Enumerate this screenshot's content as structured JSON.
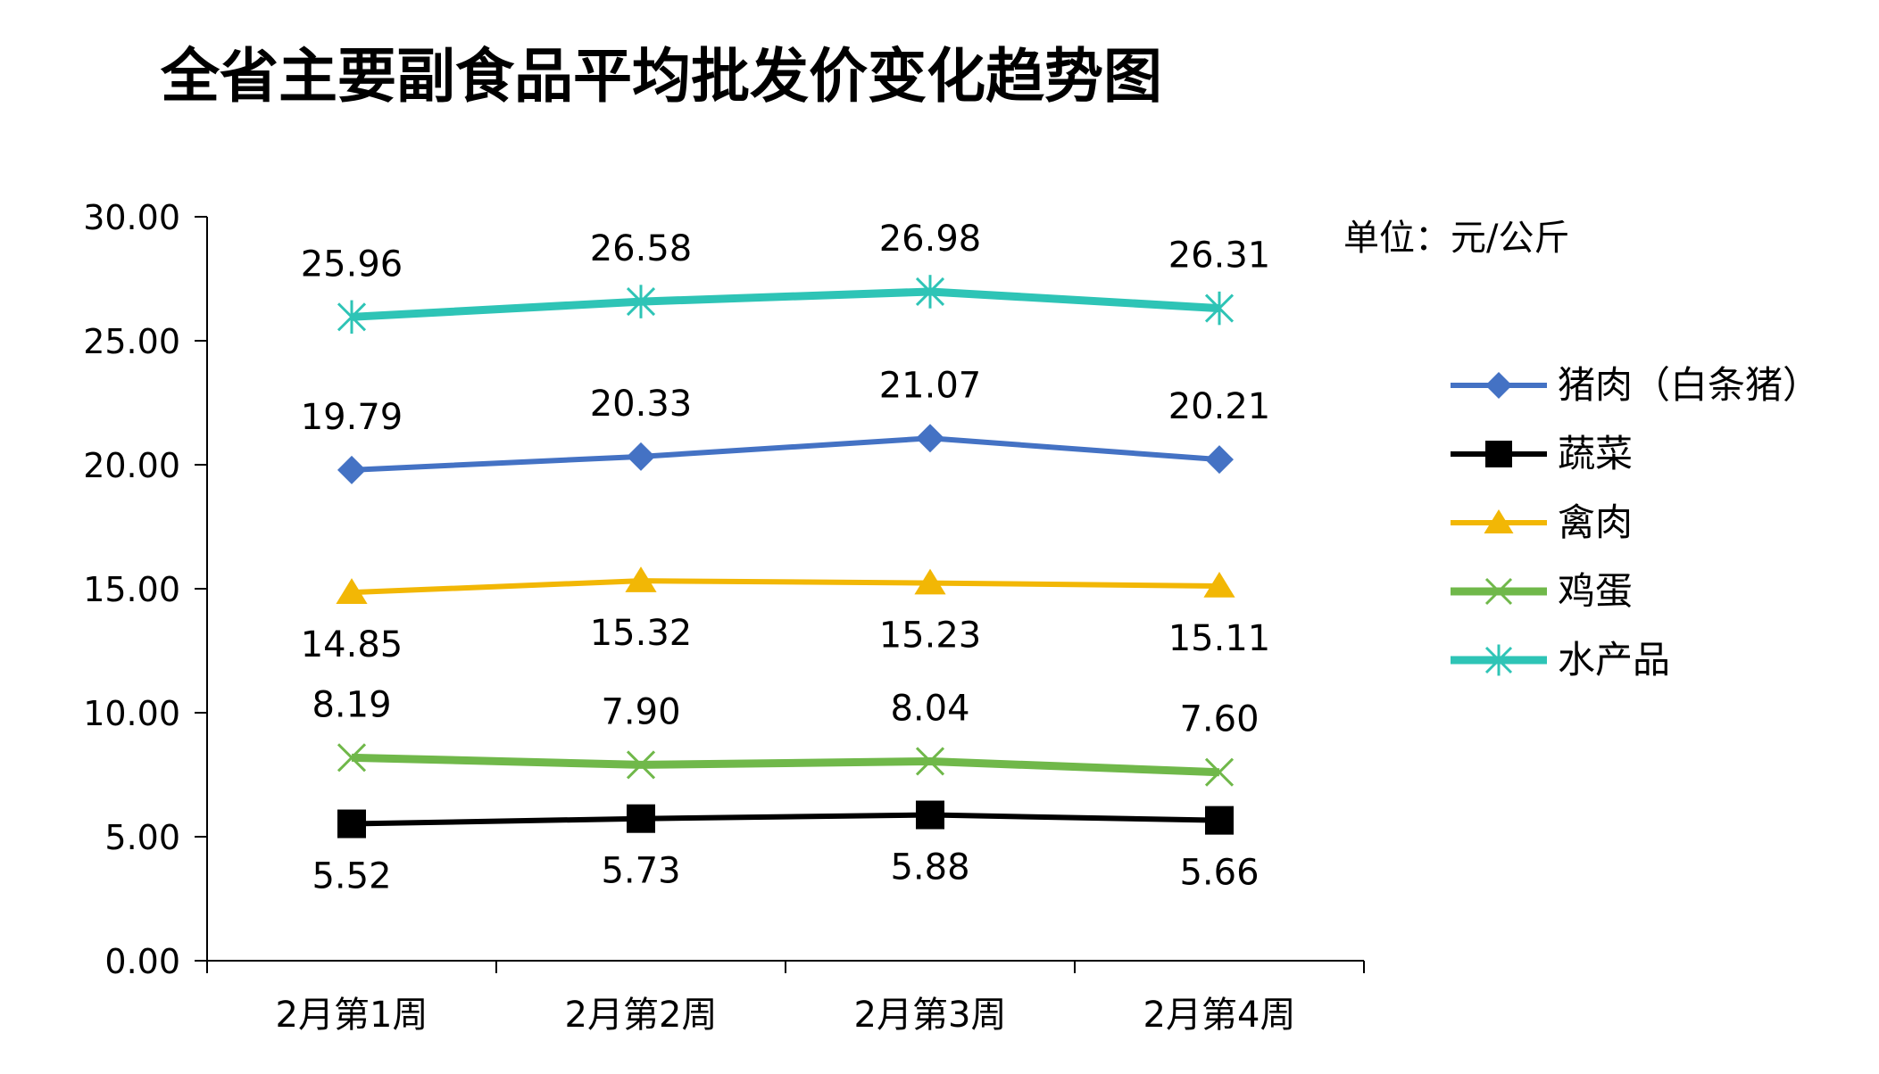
{
  "chart_data": {
    "type": "line",
    "title": "全省主要副食品平均批发价变化趋势图",
    "unit_label": "单位：元/公斤",
    "categories": [
      "2月第1周",
      "2月第2周",
      "2月第3周",
      "2月第4周"
    ],
    "ylim": [
      0,
      30
    ],
    "yticks": [
      "0.00",
      "5.00",
      "10.00",
      "15.00",
      "20.00",
      "25.00",
      "30.00"
    ],
    "grid": false,
    "legend_position": "right",
    "series": [
      {
        "name": "猪肉（白条猪）",
        "values": [
          19.79,
          20.33,
          21.07,
          20.21
        ],
        "labels": [
          "19.79",
          "20.33",
          "21.07",
          "20.21"
        ],
        "color": "#4472C4",
        "marker": "diamond",
        "label_side": "above"
      },
      {
        "name": "蔬菜",
        "values": [
          5.52,
          5.73,
          5.88,
          5.66
        ],
        "labels": [
          "5.52",
          "5.73",
          "5.88",
          "5.66"
        ],
        "color": "#000000",
        "marker": "square",
        "label_side": "below"
      },
      {
        "name": "禽肉",
        "values": [
          14.85,
          15.32,
          15.23,
          15.11
        ],
        "labels": [
          "14.85",
          "15.32",
          "15.23",
          "15.11"
        ],
        "color": "#F2B705",
        "marker": "triangle",
        "label_side": "below"
      },
      {
        "name": "鸡蛋",
        "values": [
          8.19,
          7.9,
          8.04,
          7.6
        ],
        "labels": [
          "8.19",
          "7.90",
          "8.04",
          "7.60"
        ],
        "color": "#70B84A",
        "marker": "x",
        "label_side": "above"
      },
      {
        "name": "水产品",
        "values": [
          25.96,
          26.58,
          26.98,
          26.31
        ],
        "labels": [
          "25.96",
          "26.58",
          "26.98",
          "26.31"
        ],
        "color": "#2EC4B6",
        "marker": "star",
        "label_side": "above"
      }
    ]
  }
}
